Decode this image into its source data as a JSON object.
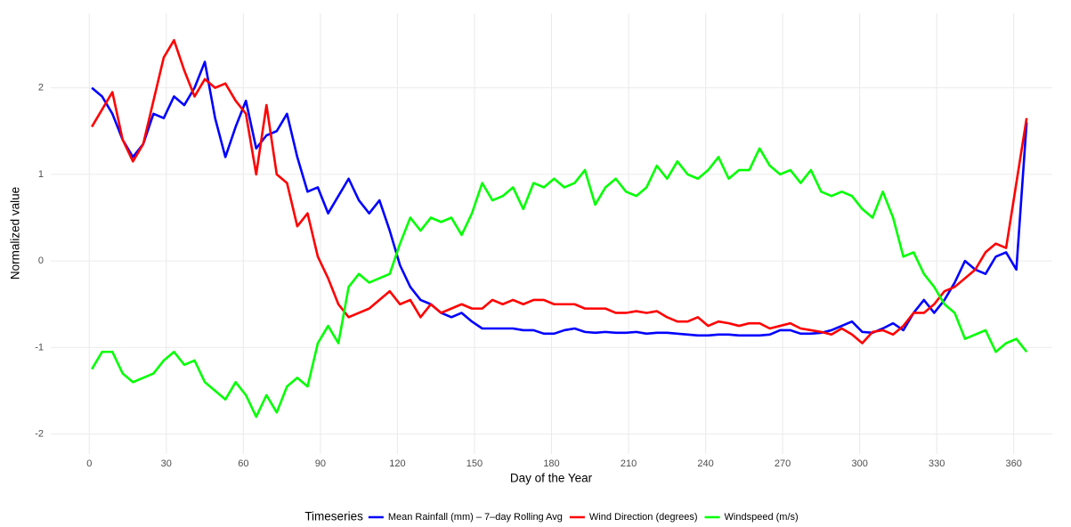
{
  "chart_data": {
    "type": "line",
    "x_label": "Day of the Year",
    "y_label": "Normalized value",
    "legend": {
      "title": "Timeseries",
      "position": "bottom"
    },
    "grid": true,
    "xlim": [
      -15,
      375
    ],
    "ylim": [
      -2.23,
      2.86
    ],
    "xticks": [
      0,
      30,
      60,
      90,
      120,
      150,
      180,
      210,
      240,
      270,
      300,
      330,
      360
    ],
    "yticks": [
      -2,
      -1,
      0,
      1,
      2
    ],
    "x": [
      1,
      5,
      9,
      13,
      17,
      21,
      25,
      29,
      33,
      37,
      41,
      45,
      49,
      53,
      57,
      61,
      65,
      69,
      73,
      77,
      81,
      85,
      89,
      93,
      97,
      101,
      105,
      109,
      113,
      117,
      121,
      125,
      129,
      133,
      137,
      141,
      145,
      149,
      153,
      157,
      161,
      165,
      169,
      173,
      177,
      181,
      185,
      189,
      193,
      197,
      201,
      205,
      209,
      213,
      217,
      221,
      225,
      229,
      233,
      237,
      241,
      245,
      249,
      253,
      257,
      261,
      265,
      269,
      273,
      277,
      281,
      285,
      289,
      293,
      297,
      301,
      305,
      309,
      313,
      317,
      321,
      325,
      329,
      333,
      337,
      341,
      345,
      349,
      353,
      357,
      361,
      365
    ],
    "series": [
      {
        "name": "Mean Rainfall (mm) – 7–day Rolling Avg",
        "color": "#0000ff",
        "values": [
          2.0,
          1.9,
          1.7,
          1.4,
          1.2,
          1.35,
          1.7,
          1.65,
          1.9,
          1.8,
          2.0,
          2.3,
          1.65,
          1.2,
          1.55,
          1.85,
          1.3,
          1.45,
          1.5,
          1.7,
          1.2,
          0.8,
          0.85,
          0.55,
          0.75,
          0.95,
          0.7,
          0.55,
          0.7,
          0.35,
          -0.05,
          -0.3,
          -0.45,
          -0.5,
          -0.6,
          -0.65,
          -0.6,
          -0.7,
          -0.78,
          -0.78,
          -0.78,
          -0.78,
          -0.8,
          -0.8,
          -0.84,
          -0.84,
          -0.8,
          -0.78,
          -0.82,
          -0.83,
          -0.82,
          -0.83,
          -0.83,
          -0.82,
          -0.84,
          -0.83,
          -0.83,
          -0.84,
          -0.85,
          -0.86,
          -0.86,
          -0.85,
          -0.85,
          -0.86,
          -0.86,
          -0.86,
          -0.85,
          -0.8,
          -0.8,
          -0.84,
          -0.84,
          -0.83,
          -0.8,
          -0.75,
          -0.7,
          -0.82,
          -0.83,
          -0.78,
          -0.72,
          -0.8,
          -0.6,
          -0.45,
          -0.6,
          -0.45,
          -0.25,
          0.0,
          -0.1,
          -0.15,
          0.05,
          0.1,
          -0.1,
          1.6
        ]
      },
      {
        "name": "Wind Direction (degrees)",
        "color": "#ff0000",
        "values": [
          1.55,
          1.75,
          1.95,
          1.4,
          1.15,
          1.35,
          1.85,
          2.35,
          2.55,
          2.2,
          1.9,
          2.1,
          2.0,
          2.05,
          1.85,
          1.7,
          1.0,
          1.8,
          1.0,
          0.9,
          0.4,
          0.55,
          0.05,
          -0.2,
          -0.5,
          -0.65,
          -0.6,
          -0.55,
          -0.45,
          -0.35,
          -0.5,
          -0.45,
          -0.65,
          -0.5,
          -0.6,
          -0.55,
          -0.5,
          -0.55,
          -0.55,
          -0.45,
          -0.5,
          -0.45,
          -0.5,
          -0.45,
          -0.45,
          -0.5,
          -0.5,
          -0.5,
          -0.55,
          -0.55,
          -0.55,
          -0.6,
          -0.6,
          -0.58,
          -0.6,
          -0.58,
          -0.65,
          -0.7,
          -0.7,
          -0.65,
          -0.75,
          -0.7,
          -0.72,
          -0.75,
          -0.72,
          -0.72,
          -0.78,
          -0.75,
          -0.72,
          -0.78,
          -0.8,
          -0.82,
          -0.85,
          -0.78,
          -0.85,
          -0.95,
          -0.82,
          -0.8,
          -0.85,
          -0.75,
          -0.6,
          -0.6,
          -0.5,
          -0.35,
          -0.3,
          -0.2,
          -0.1,
          0.1,
          0.2,
          0.15,
          0.9,
          1.65
        ]
      },
      {
        "name": "Windspeed (m/s)",
        "color": "#00ff00",
        "values": [
          -1.25,
          -1.05,
          -1.05,
          -1.3,
          -1.4,
          -1.35,
          -1.3,
          -1.15,
          -1.05,
          -1.2,
          -1.15,
          -1.4,
          -1.5,
          -1.6,
          -1.4,
          -1.55,
          -1.8,
          -1.55,
          -1.75,
          -1.45,
          -1.35,
          -1.45,
          -0.95,
          -0.75,
          -0.95,
          -0.3,
          -0.15,
          -0.25,
          -0.2,
          -0.15,
          0.2,
          0.5,
          0.35,
          0.5,
          0.45,
          0.5,
          0.3,
          0.55,
          0.9,
          0.7,
          0.75,
          0.85,
          0.6,
          0.9,
          0.85,
          0.95,
          0.85,
          0.9,
          1.05,
          0.65,
          0.85,
          0.95,
          0.8,
          0.75,
          0.85,
          1.1,
          0.95,
          1.15,
          1.0,
          0.95,
          1.05,
          1.2,
          0.95,
          1.05,
          1.05,
          1.3,
          1.1,
          1.0,
          1.05,
          0.9,
          1.05,
          0.8,
          0.75,
          0.8,
          0.75,
          0.6,
          0.5,
          0.8,
          0.5,
          0.05,
          0.1,
          -0.15,
          -0.3,
          -0.5,
          -0.6,
          -0.9,
          -0.85,
          -0.8,
          -1.05,
          -0.95,
          -0.9,
          -1.05
        ]
      }
    ]
  }
}
